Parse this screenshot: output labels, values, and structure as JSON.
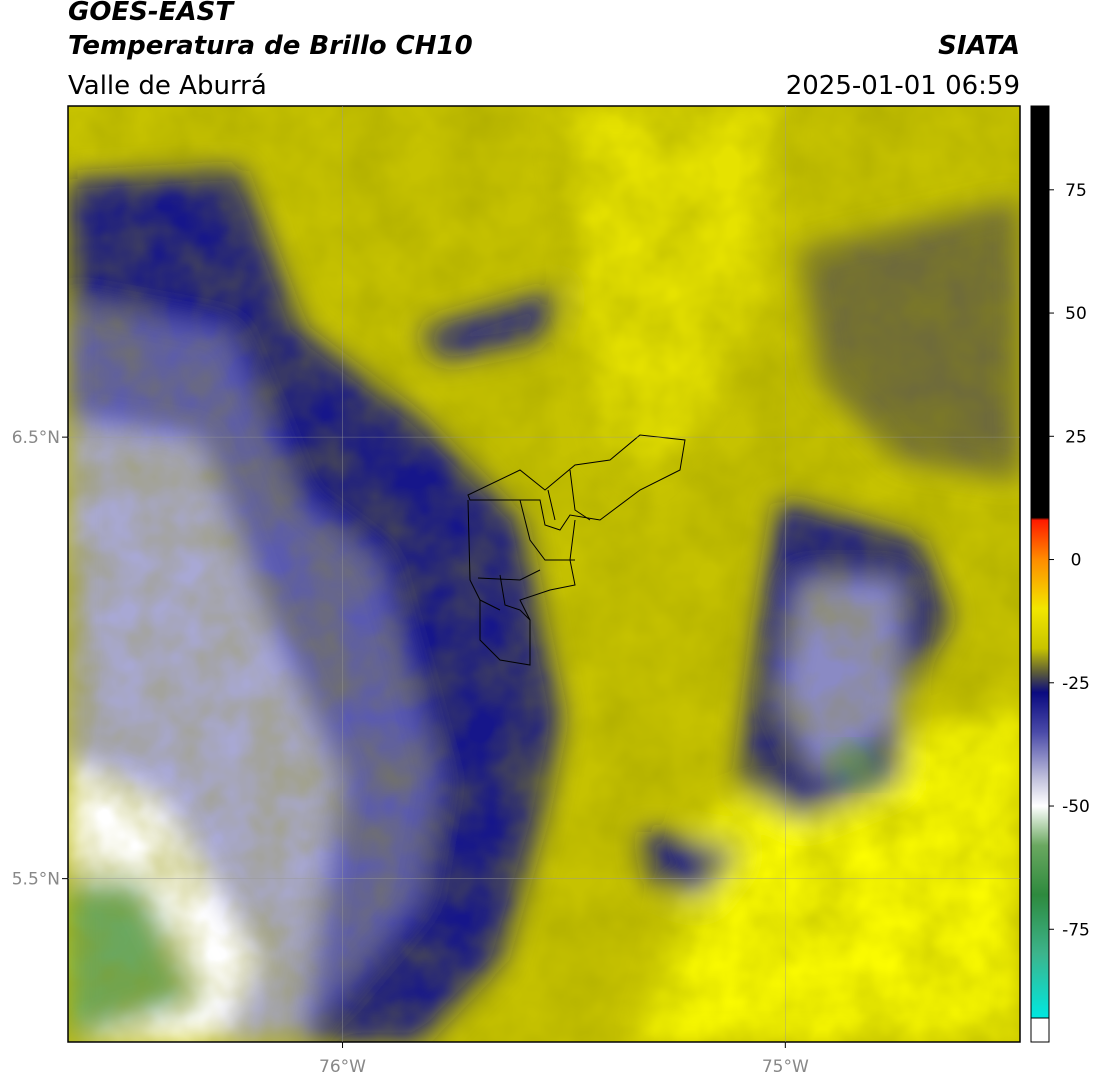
{
  "header": {
    "title": "GOES-EAST",
    "subtitle": "Temperatura de Brillo CH10",
    "region": "Valle de Aburrá",
    "source": "SIATA",
    "datetime": "2025-01-01 06:59"
  },
  "map": {
    "xlim": [
      -76.62,
      -74.47
    ],
    "ylim": [
      5.13,
      7.25
    ],
    "xticks": [
      {
        "value": -76,
        "label": "76°W"
      },
      {
        "value": -75,
        "label": "75°W"
      }
    ],
    "yticks": [
      {
        "value": 6.5,
        "label": "6.5°N"
      },
      {
        "value": 5.5,
        "label": "5.5°N"
      }
    ],
    "grid": true
  },
  "colorbar": {
    "lim": [
      -93,
      92
    ],
    "ticks": [
      75,
      50,
      25,
      0,
      -25,
      -50,
      -75
    ],
    "stops": [
      {
        "value": 92,
        "color": "#000000"
      },
      {
        "value": 8.5,
        "color": "#000000"
      },
      {
        "value": 8,
        "color": "#ff1a00"
      },
      {
        "value": 0,
        "color": "#ff8c00"
      },
      {
        "value": -10,
        "color": "#f2e600"
      },
      {
        "value": -18,
        "color": "#c8c400"
      },
      {
        "value": -23,
        "color": "#5a5a3a"
      },
      {
        "value": -27,
        "color": "#0a0a80"
      },
      {
        "value": -35,
        "color": "#4a4aa8"
      },
      {
        "value": -45,
        "color": "#c8c8e0"
      },
      {
        "value": -50,
        "color": "#ffffff"
      },
      {
        "value": -58,
        "color": "#6aa860"
      },
      {
        "value": -68,
        "color": "#2e8a3e"
      },
      {
        "value": -80,
        "color": "#3cb48c"
      },
      {
        "value": -93,
        "color": "#00e8e0"
      }
    ]
  }
}
